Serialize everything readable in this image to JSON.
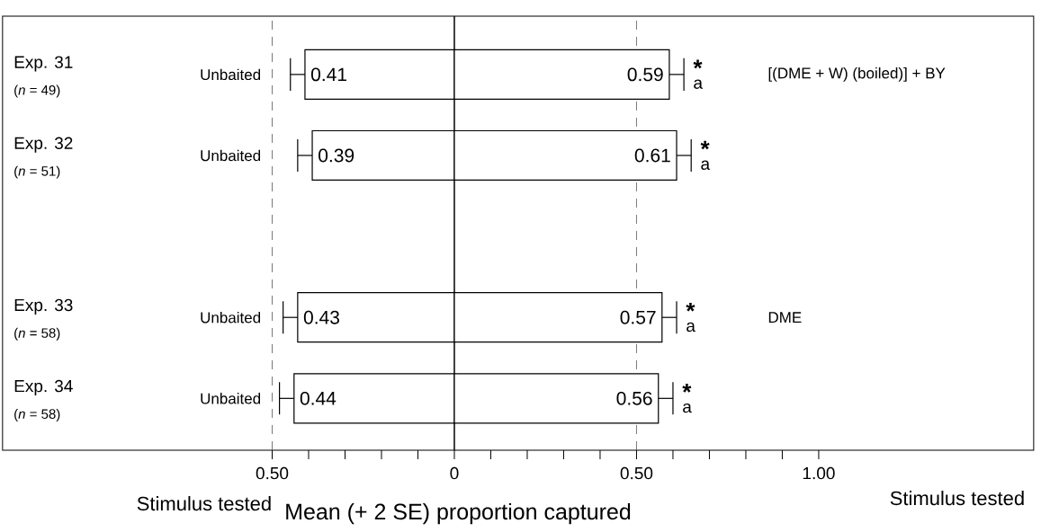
{
  "chart_data": {
    "type": "bar",
    "orientation": "horizontal",
    "xlabel": "Mean (+ 2 SE) proportion captured",
    "categories": [
      "Exp. 31",
      "Exp. 32",
      null,
      "Exp. 33",
      "Exp. 34"
    ],
    "series": [
      {
        "name": "Unbaited",
        "color": "#ffffff",
        "values": [
          0.41,
          0.39,
          null,
          0.43,
          0.44
        ],
        "base": [
          -0.41,
          -0.39,
          null,
          -0.43,
          -0.44
        ],
        "errors": [
          [
            -0.45,
            -0.41
          ],
          [
            -0.43,
            -0.39
          ],
          null,
          [
            -0.47,
            -0.43
          ],
          [
            -0.48,
            -0.44
          ]
        ]
      },
      {
        "color": "#ffffff",
        "values": [
          0.59,
          0.61,
          null,
          0.57,
          0.56
        ],
        "base": [
          0,
          0,
          null,
          0,
          0
        ],
        "errors": [
          [
            0.59,
            0.63
          ],
          [
            0.61,
            0.65
          ],
          null,
          [
            0.57,
            0.61
          ],
          [
            0.56,
            0.6
          ]
        ]
      }
    ],
    "data_labels": true,
    "xlim": [
      -1.24,
      1.59
    ],
    "xticks": [
      {
        "value": -0.5,
        "label": "0.50"
      },
      {
        "value": -0.4,
        "label": null
      },
      {
        "value": -0.3,
        "label": null
      },
      {
        "value": -0.2,
        "label": null
      },
      {
        "value": -0.1,
        "label": null
      },
      0,
      {
        "value": 0.1,
        "label": null
      },
      {
        "value": 0.2,
        "label": null
      },
      {
        "value": 0.3,
        "label": null
      },
      {
        "value": 0.4,
        "label": null
      },
      {
        "value": 0.5,
        "label": "0.50"
      },
      {
        "value": 0.6,
        "label": null
      },
      {
        "value": 0.7,
        "label": null
      },
      {
        "value": 0.8,
        "label": null
      },
      {
        "value": 0.9,
        "label": null
      },
      {
        "value": 1,
        "label": "1.00"
      }
    ],
    "ref_lines": [
      {
        "axis": "x",
        "value": -0.5,
        "line_style": "dashed",
        "color": "#555555"
      },
      {
        "axis": "x",
        "value": 0,
        "line_style": "solid",
        "color": "#000000"
      },
      {
        "axis": "x",
        "value": 0.5,
        "line_style": "dashed",
        "color": "#555555"
      }
    ],
    "annotations": [
      "(*n* = 49)",
      "(*n* = 51)",
      "(*n* = 58)",
      "(*n* = 58)",
      "*",
      "*",
      "*",
      "*",
      "a",
      "a",
      "a",
      "a",
      "[(DME + W) (boiled)] + BY",
      "DME",
      "Stimulus tested",
      "Stimulus tested"
    ]
  }
}
